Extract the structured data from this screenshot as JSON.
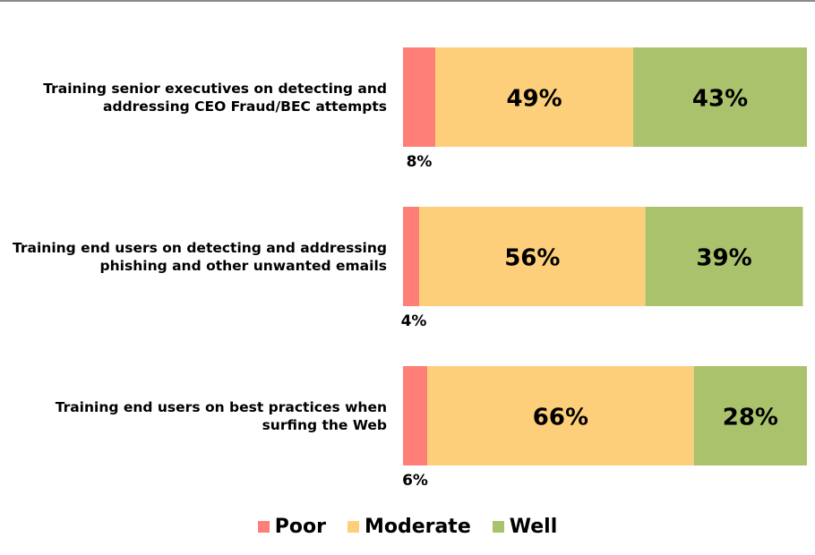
{
  "chart_data": {
    "type": "bar",
    "orientation": "horizontal",
    "stacked": true,
    "categories": [
      "Training senior executives on detecting and addressing CEO Fraud/BEC attempts",
      "Training end users on detecting and addressing phishing and other unwanted emails",
      "Training end users on best practices when surfing the Web"
    ],
    "series": [
      {
        "name": "Poor",
        "color": "#fe7f78",
        "values": [
          8,
          4,
          6
        ],
        "value_labels": [
          "8%",
          "4%",
          "6%"
        ]
      },
      {
        "name": "Moderate",
        "color": "#fdcf7a",
        "values": [
          49,
          56,
          66
        ],
        "value_labels": [
          "49%",
          "56%",
          "66%"
        ]
      },
      {
        "name": "Well",
        "color": "#a9c26b",
        "values": [
          43,
          39,
          28
        ],
        "value_labels": [
          "43%",
          "39%",
          "28%"
        ]
      }
    ],
    "xlim": [
      0,
      100
    ],
    "legend": "bottom"
  }
}
